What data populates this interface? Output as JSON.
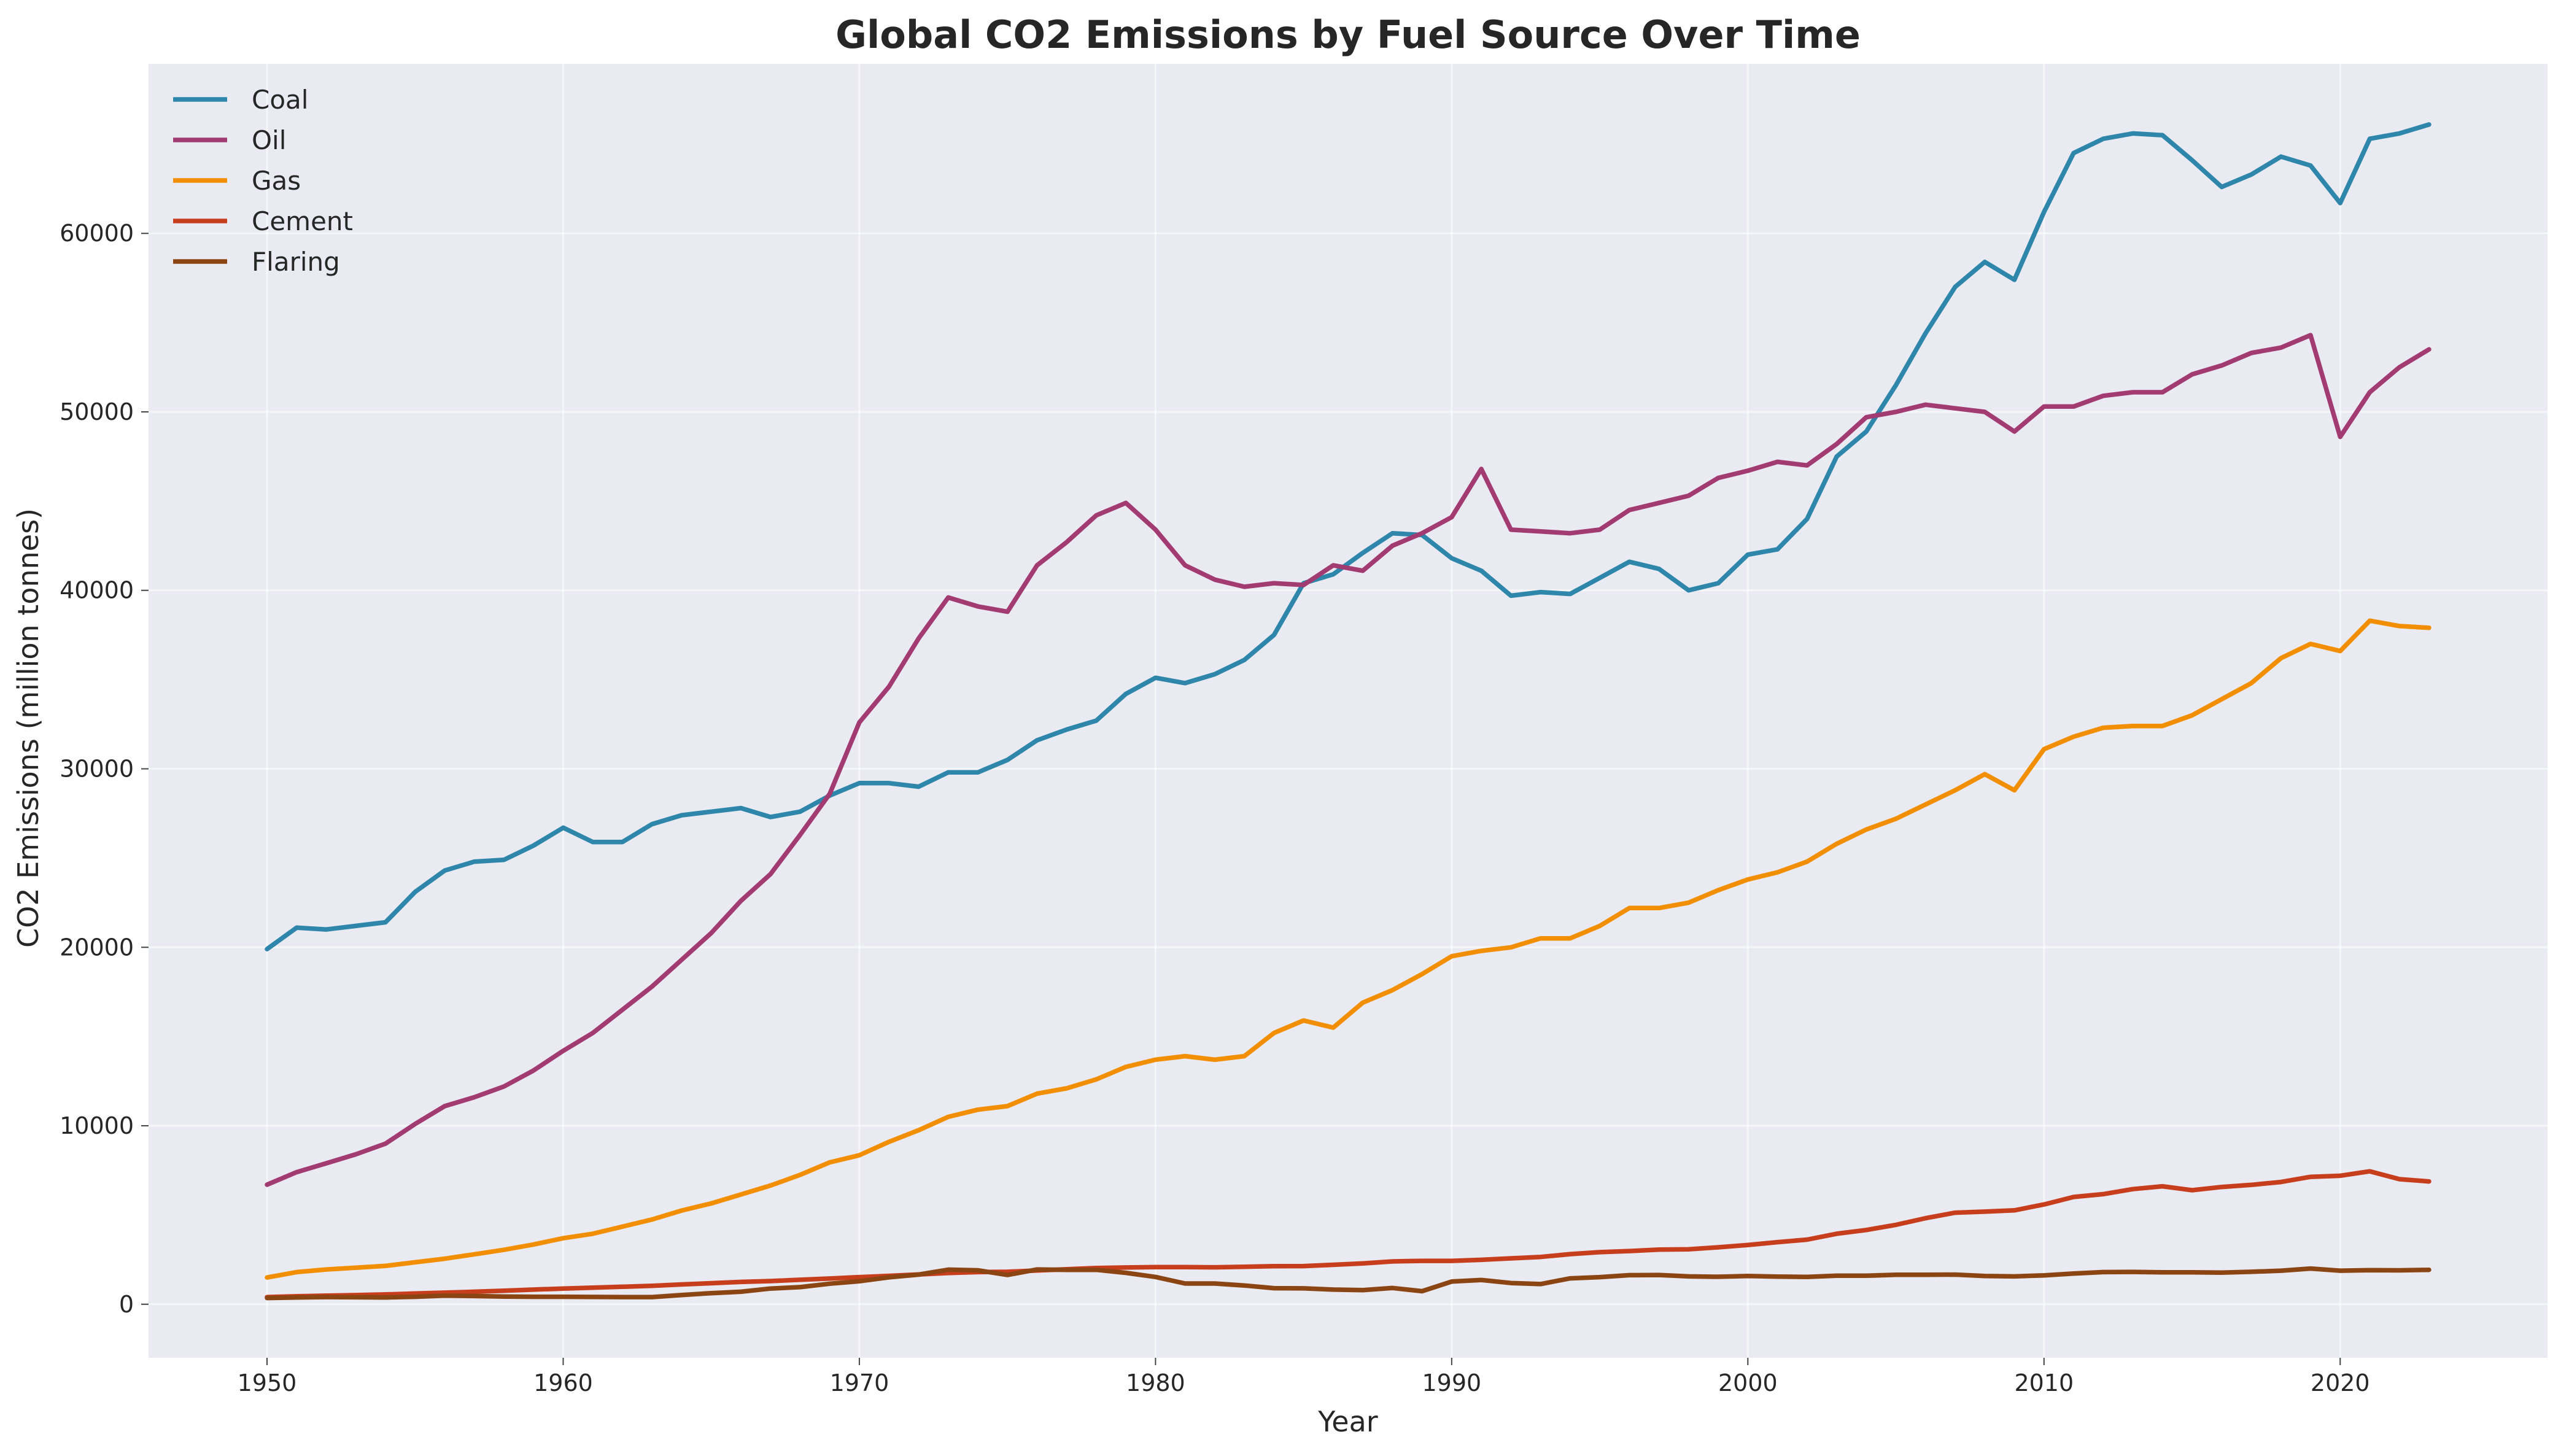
{
  "chart_data": {
    "type": "line",
    "title": "Global CO2 Emissions by Fuel Source Over Time",
    "xlabel": "Year",
    "ylabel": "CO2 Emissions (million tonnes)",
    "xlim": [
      1946,
      2027
    ],
    "ylim": [
      -3000,
      69500
    ],
    "xticks": [
      1950,
      1960,
      1970,
      1980,
      1990,
      2000,
      2010,
      2020
    ],
    "yticks": [
      0,
      10000,
      20000,
      30000,
      40000,
      50000,
      60000
    ],
    "grid": true,
    "legend_position": "top-left",
    "x": [
      1950,
      1951,
      1952,
      1953,
      1954,
      1955,
      1956,
      1957,
      1958,
      1959,
      1960,
      1961,
      1962,
      1963,
      1964,
      1965,
      1966,
      1967,
      1968,
      1969,
      1970,
      1971,
      1972,
      1973,
      1974,
      1975,
      1976,
      1977,
      1978,
      1979,
      1980,
      1981,
      1982,
      1983,
      1984,
      1985,
      1986,
      1987,
      1988,
      1989,
      1990,
      1991,
      1992,
      1993,
      1994,
      1995,
      1996,
      1997,
      1998,
      1999,
      2000,
      2001,
      2002,
      2003,
      2004,
      2005,
      2006,
      2007,
      2008,
      2009,
      2010,
      2011,
      2012,
      2013,
      2014,
      2015,
      2016,
      2017,
      2018,
      2019,
      2020,
      2021,
      2022,
      2023
    ],
    "series": [
      {
        "name": "Coal",
        "color": "#2E86AB",
        "values": [
          19900,
          21100,
          21000,
          21200,
          21400,
          23100,
          24300,
          24800,
          24900,
          25700,
          26700,
          25900,
          25900,
          26900,
          27400,
          27600,
          27800,
          27300,
          27600,
          28500,
          29200,
          29200,
          29000,
          29800,
          29800,
          30500,
          31600,
          32200,
          32700,
          34200,
          35100,
          34800,
          35300,
          36100,
          37500,
          40400,
          40900,
          42100,
          43200,
          43100,
          41800,
          41100,
          39700,
          39900,
          39800,
          40700,
          41600,
          41200,
          40000,
          40400,
          42000,
          42300,
          44000,
          47500,
          48900,
          51500,
          54400,
          57000,
          58400,
          57400,
          61200,
          64500,
          65300,
          65600,
          65500,
          64100,
          62600,
          63300,
          64300,
          63800,
          61700,
          65300,
          65600,
          66100
        ]
      },
      {
        "name": "Oil",
        "color": "#A23B72",
        "values": [
          6700,
          7400,
          7900,
          8400,
          9000,
          10100,
          11100,
          11600,
          12200,
          13100,
          14200,
          15200,
          16500,
          17800,
          19300,
          20800,
          22600,
          24100,
          26300,
          28600,
          32600,
          34600,
          37300,
          39600,
          39100,
          38800,
          41400,
          42700,
          44200,
          44900,
          43400,
          41400,
          40600,
          40200,
          40400,
          40300,
          41400,
          41100,
          42500,
          43200,
          44100,
          46800,
          43400,
          43300,
          43200,
          43400,
          44500,
          44900,
          45300,
          46300,
          46700,
          47200,
          47000,
          48200,
          49700,
          50000,
          50400,
          50200,
          50000,
          48900,
          50300,
          50300,
          50900,
          51100,
          51100,
          52100,
          52600,
          53300,
          53600,
          54300,
          48600,
          51100,
          52500,
          53500
        ]
      },
      {
        "name": "Gas",
        "color": "#F18F01",
        "values": [
          1500,
          1800,
          1950,
          2050,
          2150,
          2350,
          2550,
          2800,
          3050,
          3350,
          3700,
          3950,
          4350,
          4750,
          5250,
          5650,
          6150,
          6650,
          7250,
          7950,
          8350,
          9100,
          9750,
          10500,
          10900,
          11100,
          11800,
          12100,
          12600,
          13300,
          13700,
          13900,
          13700,
          13900,
          15200,
          15900,
          15500,
          16900,
          17600,
          18500,
          19500,
          19800,
          20000,
          20500,
          20500,
          21200,
          22200,
          22200,
          22500,
          23200,
          23800,
          24200,
          24800,
          25800,
          26600,
          27200,
          28000,
          28800,
          29700,
          28800,
          31100,
          31800,
          32300,
          32400,
          32400,
          33000,
          33900,
          34800,
          36200,
          37000,
          36600,
          38300,
          38000,
          37900
        ]
      },
      {
        "name": "Cement",
        "color": "#C73E1D",
        "values": [
          400,
          450,
          480,
          510,
          550,
          600,
          650,
          700,
          760,
          820,
          880,
          930,
          980,
          1030,
          1110,
          1180,
          1250,
          1300,
          1370,
          1440,
          1520,
          1590,
          1670,
          1750,
          1800,
          1820,
          1890,
          1960,
          2030,
          2060,
          2080,
          2080,
          2070,
          2100,
          2130,
          2140,
          2210,
          2290,
          2400,
          2430,
          2430,
          2490,
          2570,
          2650,
          2810,
          2920,
          2980,
          3060,
          3080,
          3190,
          3320,
          3480,
          3620,
          3950,
          4160,
          4450,
          4820,
          5130,
          5190,
          5260,
          5590,
          6010,
          6170,
          6450,
          6610,
          6390,
          6570,
          6690,
          6850,
          7140,
          7200,
          7450,
          7010,
          6880
        ]
      },
      {
        "name": "Flaring",
        "color": "#8B4513",
        "values": [
          350,
          380,
          400,
          390,
          380,
          420,
          480,
          460,
          430,
          420,
          420,
          410,
          400,
          400,
          520,
          620,
          700,
          880,
          960,
          1150,
          1290,
          1510,
          1660,
          1940,
          1900,
          1640,
          1950,
          1930,
          1930,
          1760,
          1530,
          1160,
          1160,
          1050,
          900,
          890,
          820,
          790,
          910,
          730,
          1270,
          1360,
          1190,
          1130,
          1450,
          1520,
          1630,
          1640,
          1560,
          1540,
          1580,
          1550,
          1530,
          1600,
          1600,
          1650,
          1650,
          1660,
          1580,
          1560,
          1620,
          1720,
          1800,
          1810,
          1790,
          1790,
          1770,
          1820,
          1880,
          2000,
          1880,
          1910,
          1900,
          1930
        ]
      }
    ]
  }
}
